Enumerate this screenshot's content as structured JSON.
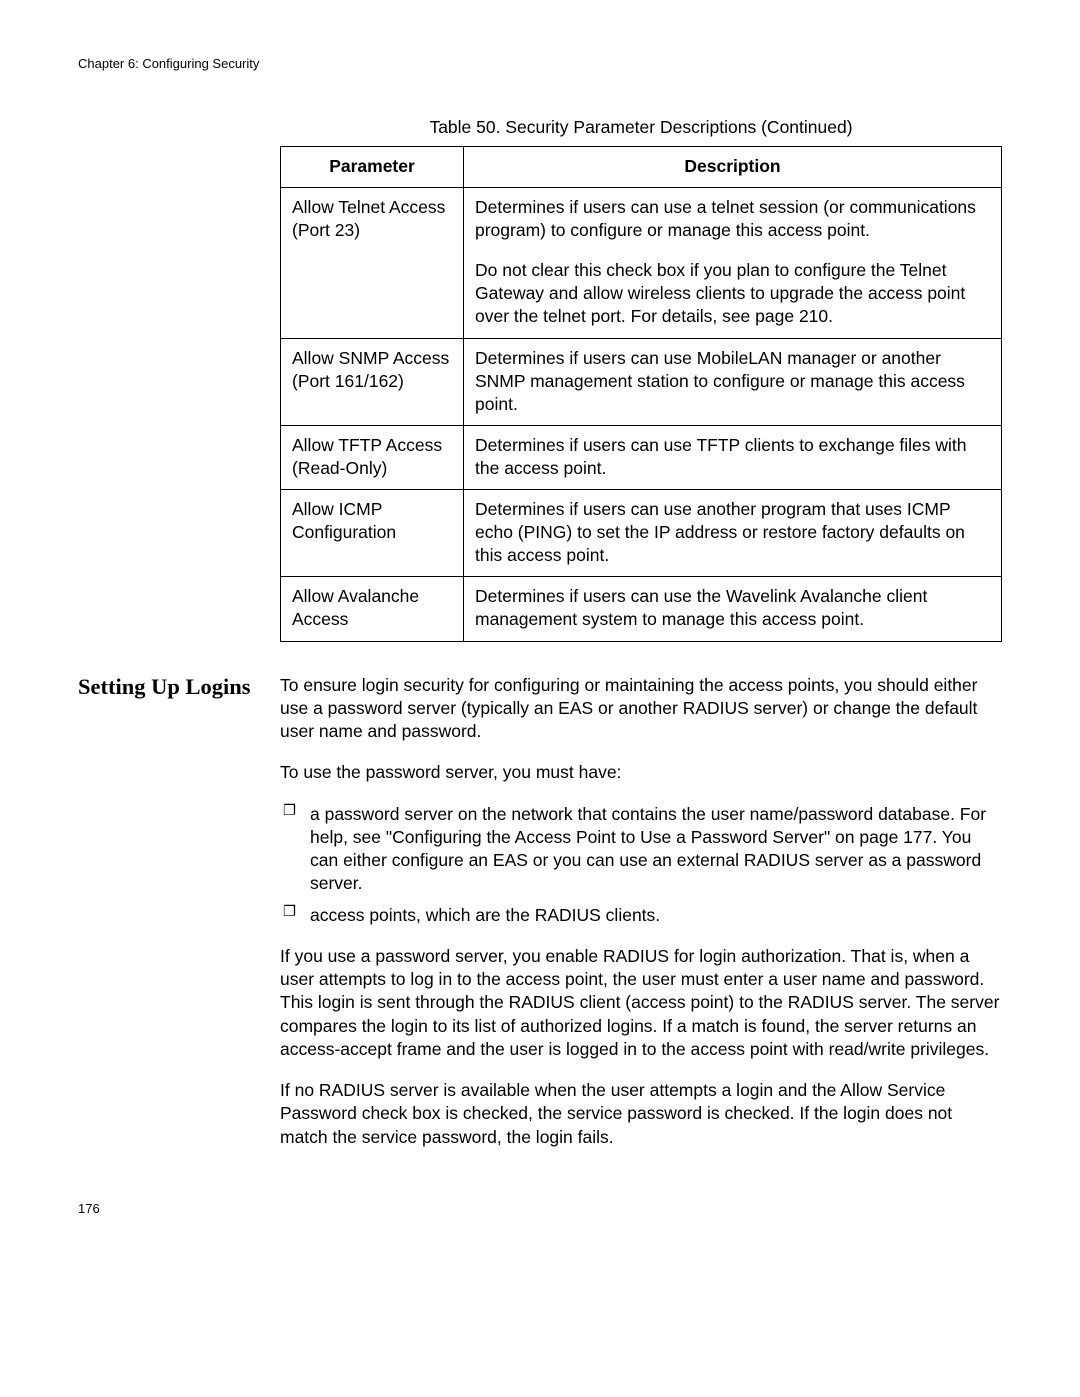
{
  "chapter_header": "Chapter 6: Configuring Security",
  "table": {
    "caption": "Table 50. Security Parameter Descriptions (Continued)",
    "columns": [
      "Parameter",
      "Description"
    ],
    "rows": [
      {
        "param": "Allow Telnet Access (Port 23)",
        "desc_paras": [
          "Determines if users can use a telnet session (or communications program) to configure or manage this access point.",
          "Do not clear this check box if you plan to configure the Telnet Gateway and allow wireless clients to upgrade the access point over the telnet port. For details, see page 210."
        ]
      },
      {
        "param": "Allow SNMP Access (Port 161/162)",
        "desc_paras": [
          "Determines if users can use MobileLAN manager or another SNMP management station to configure or manage this access point."
        ]
      },
      {
        "param": "Allow TFTP Access (Read-Only)",
        "desc_paras": [
          "Determines if users can use TFTP clients to exchange files with the access point."
        ]
      },
      {
        "param": "Allow ICMP Configuration",
        "desc_paras": [
          "Determines if users can use another program that uses ICMP echo (PING) to set the IP address or restore factory defaults on this access point."
        ]
      },
      {
        "param": "Allow Avalanche Access",
        "desc_paras": [
          "Determines if users can use the Wavelink Avalanche client management system to manage this access point."
        ]
      }
    ]
  },
  "section": {
    "heading": "Setting Up Logins",
    "para1": "To ensure login security for configuring or maintaining the access points, you should either use a password server (typically an EAS or another RADIUS server) or change the default user name and password.",
    "para2": "To use the password server, you must have:",
    "bullets": [
      "a password server on the network that contains the user name/password database. For help, see \"Configuring the Access Point to Use a Password Server\" on page 177. You can either configure an EAS or you can use an external RADIUS server as a password server.",
      "access points, which are the RADIUS clients."
    ],
    "para3": "If you use a password server, you enable RADIUS for login authorization. That is, when a user attempts to log in to the access point, the user must enter a user name and password. This login is sent through the RADIUS client (access point) to the RADIUS server. The server compares the login to its list of authorized logins. If a match is found, the server returns an access-accept frame and the user is logged in to the access point with read/write privileges.",
    "para4": "If no RADIUS server is available when the user attempts a login and the Allow Service Password check box is checked, the service password is checked. If the login does not match the service password, the login fails."
  },
  "page_number": "176"
}
